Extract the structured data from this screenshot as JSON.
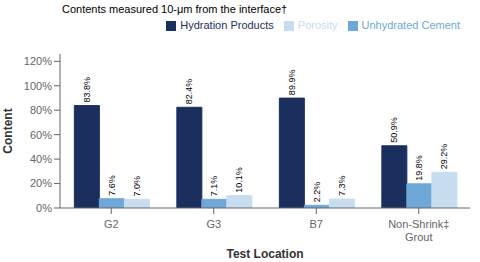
{
  "chart_data": {
    "type": "bar",
    "annotation": "Contents measured 10-μm from the interface†",
    "xlabel": "Test Location",
    "ylabel": "Content",
    "categories": [
      "G2",
      "G3",
      "B7",
      "Non-Shrink‡\nGrout"
    ],
    "series": [
      {
        "name": "Hydration Products",
        "color": "#1B2F5E",
        "values": [
          83.8,
          82.4,
          89.9,
          50.9
        ],
        "value_labels": [
          "83.8%",
          "82.4%",
          "89.9%",
          "50.9%"
        ]
      },
      {
        "name": "Unhydrated Cement",
        "color": "#6FA8D8",
        "values": [
          7.6,
          7.1,
          2.2,
          19.8
        ],
        "value_labels": [
          "7.6%",
          "7.1%",
          "2.2%",
          "19.8%"
        ]
      },
      {
        "name": "Porosity",
        "color": "#C8DCF0",
        "values": [
          7.0,
          10.1,
          7.3,
          29.2
        ],
        "value_labels": [
          "7.0%",
          "10.1%",
          "7.3%",
          "29.2%"
        ]
      }
    ],
    "ylim": [
      0,
      126
    ],
    "yticks": [
      {
        "value": 0,
        "label": "0%"
      },
      {
        "value": 20,
        "label": "20%"
      },
      {
        "value": 40,
        "label": "40%"
      },
      {
        "value": 60,
        "label": "60%"
      },
      {
        "value": 80,
        "label": "80%"
      },
      {
        "value": 100,
        "label": "100%"
      },
      {
        "value": 120,
        "label": "120%"
      }
    ],
    "grid": false,
    "legend": "upper right",
    "data_labels": true
  }
}
